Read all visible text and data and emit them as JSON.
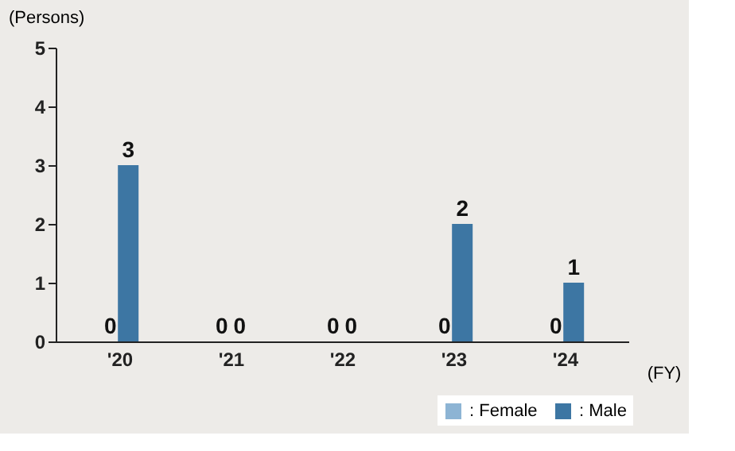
{
  "chart_data": {
    "type": "bar",
    "ylabel": "(Persons)",
    "xlabel": "(FY)",
    "categories": [
      "'20",
      "'21",
      "'22",
      "'23",
      "'24"
    ],
    "series": [
      {
        "name": ": Female",
        "color": "#8db4d4",
        "values": [
          0,
          0,
          0,
          0,
          0
        ]
      },
      {
        "name": ": Male",
        "color": "#3d76a3",
        "values": [
          3,
          0,
          0,
          2,
          1
        ]
      }
    ],
    "ylim": [
      0,
      5
    ],
    "yticks": [
      0,
      1,
      2,
      3,
      4,
      5
    ],
    "grid": false,
    "legend": "bottom right",
    "data_labels": true
  }
}
